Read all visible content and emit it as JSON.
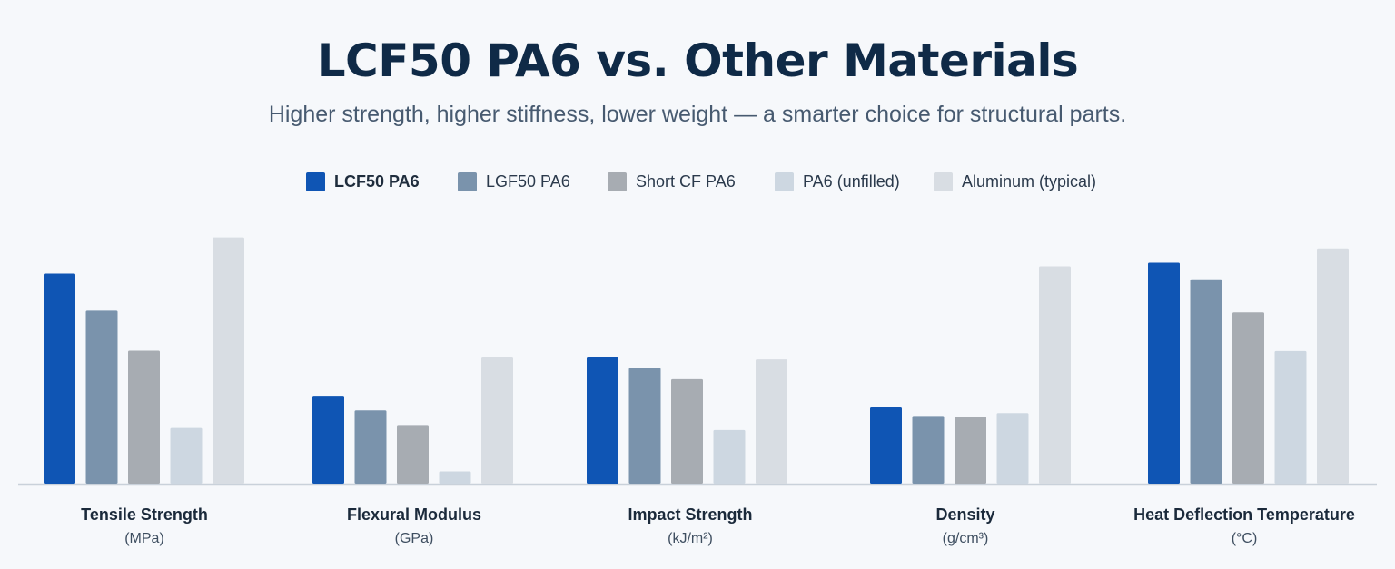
{
  "title": "LCF50 PA6 vs. Other Materials",
  "subtitle": "Higher strength, higher stiffness, lower weight — a smarter choice for structural parts.",
  "colors": {
    "LCF50 PA6": "#0f55b4",
    "LGF50 PA6": "#7a93ac",
    "Short CF PA6": "#a7acb2",
    "PA6 (unfilled)": "#cdd7e1",
    "Aluminum (typical)": "#d8dde3"
  },
  "chart_data": {
    "type": "bar",
    "legend_position": "top-center",
    "grid": false,
    "relative_scale": true,
    "series_names": [
      "LCF50 PA6",
      "LGF50 PA6",
      "Short CF PA6",
      "PA6 (unfilled)",
      "Aluminum (typical)"
    ],
    "categories": [
      {
        "label": "Tensile Strength",
        "unit": "(MPa)",
        "values": [
          215,
          177,
          136,
          57,
          252
        ],
        "ylim": [
          0,
          260
        ]
      },
      {
        "label": "Flexural Modulus",
        "unit": "(GPa)",
        "values": [
          18,
          15,
          12,
          2.5,
          26
        ],
        "ylim": [
          0,
          52
        ]
      },
      {
        "label": "Impact Strength",
        "unit": "(kJ/m²)",
        "values": [
          45,
          41,
          37,
          19,
          44
        ],
        "ylim": [
          0,
          90
        ]
      },
      {
        "label": "Density",
        "unit": "(g/cm³)",
        "values": [
          1.35,
          1.2,
          1.19,
          1.25,
          3.85
        ],
        "ylim": [
          0,
          4.5
        ]
      },
      {
        "label": "Heat Deflection Temperature",
        "unit": "(°C)",
        "values": [
          200,
          185,
          155,
          120,
          213
        ],
        "ylim": [
          0,
          230
        ]
      }
    ]
  }
}
